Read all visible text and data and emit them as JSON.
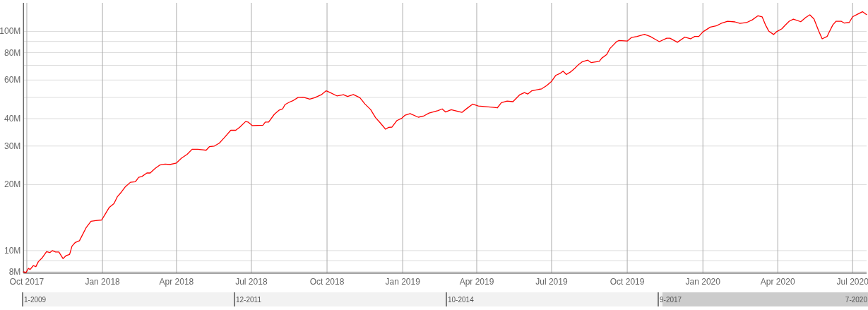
{
  "chart_data": {
    "type": "line",
    "x": [
      "2017-09-27",
      "2017-09-30",
      "2017-10-03",
      "2017-10-05",
      "2017-10-09",
      "2017-10-12",
      "2017-10-15",
      "2017-10-20",
      "2017-10-25",
      "2017-10-29",
      "2017-11-01",
      "2017-11-05",
      "2017-11-09",
      "2017-11-14",
      "2017-11-18",
      "2017-11-22",
      "2017-11-25",
      "2017-11-29",
      "2017-12-04",
      "2017-12-12",
      "2017-12-18",
      "2017-12-24",
      "2017-12-31",
      "2018-01-04",
      "2018-01-09",
      "2018-01-15",
      "2018-01-19",
      "2018-01-24",
      "2018-01-29",
      "2018-02-04",
      "2018-02-10",
      "2018-02-14",
      "2018-02-18",
      "2018-02-24",
      "2018-02-28",
      "2018-03-06",
      "2018-03-12",
      "2018-03-18",
      "2018-03-24",
      "2018-04-01",
      "2018-04-07",
      "2018-04-14",
      "2018-04-20",
      "2018-04-27",
      "2018-05-07",
      "2018-05-11",
      "2018-05-17",
      "2018-05-23",
      "2018-05-29",
      "2018-06-06",
      "2018-06-12",
      "2018-06-17",
      "2018-06-24",
      "2018-06-27",
      "2018-07-02",
      "2018-07-15",
      "2018-07-18",
      "2018-07-22",
      "2018-07-29",
      "2018-08-04",
      "2018-08-08",
      "2018-08-11",
      "2018-08-17",
      "2018-08-21",
      "2018-08-27",
      "2018-09-02",
      "2018-09-10",
      "2018-09-16",
      "2018-09-24",
      "2018-09-30",
      "2018-10-04",
      "2018-10-13",
      "2018-10-21",
      "2018-10-26",
      "2018-11-02",
      "2018-11-10",
      "2018-11-16",
      "2018-11-23",
      "2018-11-29",
      "2018-12-03",
      "2018-12-08",
      "2018-12-11",
      "2018-12-15",
      "2018-12-19",
      "2018-12-25",
      "2018-12-31",
      "2019-01-04",
      "2019-01-10",
      "2019-01-20",
      "2019-01-27",
      "2019-02-02",
      "2019-02-13",
      "2019-02-18",
      "2019-02-22",
      "2019-03-01",
      "2019-03-14",
      "2019-03-20",
      "2019-03-27",
      "2019-04-03",
      "2019-04-20",
      "2019-04-26",
      "2019-05-01",
      "2019-05-08",
      "2019-05-15",
      "2019-05-23",
      "2019-05-29",
      "2019-06-02",
      "2019-06-07",
      "2019-06-19",
      "2019-06-25",
      "2019-07-01",
      "2019-07-06",
      "2019-07-11",
      "2019-07-15",
      "2019-07-19",
      "2019-07-24",
      "2019-07-29",
      "2019-08-02",
      "2019-08-07",
      "2019-08-14",
      "2019-08-18",
      "2019-08-28",
      "2019-08-31",
      "2019-09-06",
      "2019-09-10",
      "2019-09-14",
      "2019-09-18",
      "2019-09-21",
      "2019-10-01",
      "2019-10-06",
      "2019-10-13",
      "2019-10-22",
      "2019-10-29",
      "2019-11-03",
      "2019-11-09",
      "2019-11-18",
      "2019-11-22",
      "2019-12-01",
      "2019-12-10",
      "2019-12-17",
      "2019-12-22",
      "2019-12-27",
      "2020-01-01",
      "2020-01-10",
      "2020-01-17",
      "2020-01-23",
      "2020-01-31",
      "2020-02-09",
      "2020-02-15",
      "2020-02-23",
      "2020-03-01",
      "2020-03-08",
      "2020-03-13",
      "2020-03-17",
      "2020-03-21",
      "2020-03-27",
      "2020-03-31",
      "2020-04-06",
      "2020-04-10",
      "2020-04-15",
      "2020-04-20",
      "2020-04-29",
      "2020-05-05",
      "2020-05-10",
      "2020-05-15",
      "2020-05-21",
      "2020-05-25",
      "2020-05-31",
      "2020-06-02",
      "2020-06-07",
      "2020-06-11",
      "2020-06-17",
      "2020-06-21",
      "2020-06-27",
      "2020-07-01",
      "2020-07-07",
      "2020-07-13",
      "2020-07-18"
    ],
    "series": [
      {
        "color": "#ff0000",
        "values": [
          8000000,
          7950000,
          8300000,
          8200000,
          8550000,
          8450000,
          8900000,
          9300000,
          9900000,
          9800000,
          10000000,
          9850000,
          9850000,
          9200000,
          9500000,
          9600000,
          10500000,
          10900000,
          11100000,
          12700000,
          13600000,
          13700000,
          13800000,
          14600000,
          15700000,
          16400000,
          17600000,
          18500000,
          19600000,
          20500000,
          20600000,
          21600000,
          21800000,
          22600000,
          22600000,
          23700000,
          24600000,
          24800000,
          24700000,
          25100000,
          26400000,
          27500000,
          29000000,
          29000000,
          28700000,
          29800000,
          30000000,
          30900000,
          32700000,
          35400000,
          35400000,
          36600000,
          38800000,
          38600000,
          37200000,
          37300000,
          38600000,
          38600000,
          41900000,
          43800000,
          44300000,
          46400000,
          47700000,
          48400000,
          50000000,
          50100000,
          49100000,
          49800000,
          51400000,
          53600000,
          52800000,
          50800000,
          51400000,
          50500000,
          51500000,
          49800000,
          46700000,
          44000000,
          40400000,
          38900000,
          37000000,
          35800000,
          36500000,
          36600000,
          39200000,
          40200000,
          41500000,
          42200000,
          40600000,
          41200000,
          42400000,
          43500000,
          44300000,
          42900000,
          43900000,
          42700000,
          44500000,
          46600000,
          45700000,
          45100000,
          44800000,
          47300000,
          48100000,
          47800000,
          51300000,
          52600000,
          51800000,
          53600000,
          54700000,
          56600000,
          59200000,
          63000000,
          64200000,
          65900000,
          63600000,
          65300000,
          67700000,
          70100000,
          72600000,
          73900000,
          72100000,
          73000000,
          75500000,
          78400000,
          83600000,
          86600000,
          89800000,
          90900000,
          90300000,
          93700000,
          94800000,
          96900000,
          94800000,
          92500000,
          89800000,
          93100000,
          93100000,
          89200000,
          94200000,
          92500000,
          94800000,
          94800000,
          99500000,
          104600000,
          105900000,
          108700000,
          111300000,
          110500000,
          108700000,
          109700000,
          112900000,
          117900000,
          116600000,
          107200000,
          100400000,
          96800000,
          99900000,
          102800000,
          106700000,
          111300000,
          113700000,
          110700000,
          115800000,
          119000000,
          114100000,
          99900000,
          92500000,
          94800000,
          98300000,
          107200000,
          111300000,
          111300000,
          109100000,
          109900000,
          116600000,
          119800000,
          123000000,
          119300000
        ]
      }
    ],
    "xlim": [
      "2017-09-27",
      "2020-07-18"
    ],
    "xticks": [
      {
        "value": "2017-10-01",
        "label": "Oct 2017"
      },
      {
        "value": "2018-01-01",
        "label": "Jan 2018"
      },
      {
        "value": "2018-04-01",
        "label": "Apr 2018"
      },
      {
        "value": "2018-07-01",
        "label": "Jul 2018"
      },
      {
        "value": "2018-10-01",
        "label": "Oct 2018"
      },
      {
        "value": "2019-01-01",
        "label": "Jan 2019"
      },
      {
        "value": "2019-04-01",
        "label": "Apr 2019"
      },
      {
        "value": "2019-07-01",
        "label": "Jul 2019"
      },
      {
        "value": "2019-10-01",
        "label": "Oct 2019"
      },
      {
        "value": "2020-01-01",
        "label": "Jan 2020"
      },
      {
        "value": "2020-04-01",
        "label": "Apr 2020"
      },
      {
        "value": "2020-07-01",
        "label": "Jul 2020"
      }
    ],
    "ylim": [
      7900000,
      135000000
    ],
    "yticks": [
      {
        "value": 8000000,
        "label": "8M"
      },
      {
        "value": 9000000,
        "label": null
      },
      {
        "value": 10000000,
        "label": "10M"
      },
      {
        "value": 20000000,
        "label": "20M"
      },
      {
        "value": 30000000,
        "label": "30M"
      },
      {
        "value": 40000000,
        "label": "40M"
      },
      {
        "value": 50000000,
        "label": null
      },
      {
        "value": 60000000,
        "label": "60M"
      },
      {
        "value": 70000000,
        "label": null
      },
      {
        "value": 80000000,
        "label": "80M"
      },
      {
        "value": 90000000,
        "label": null
      },
      {
        "value": 100000000,
        "label": "100M"
      }
    ],
    "log": true,
    "grid": true,
    "annotations": [
      "1-2009",
      "12-2011",
      "10-2014",
      "9-2017",
      "7-2020"
    ]
  }
}
